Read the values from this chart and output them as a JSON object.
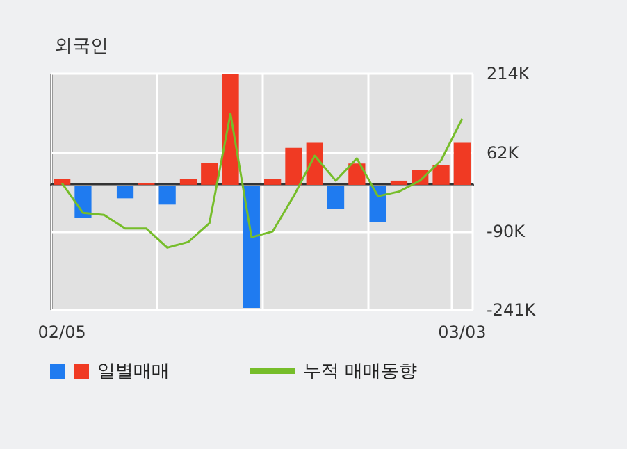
{
  "chart_data": {
    "type": "bar",
    "title": "외국인",
    "categories": [
      "02/05",
      null,
      null,
      null,
      null,
      null,
      null,
      null,
      null,
      null,
      null,
      null,
      null,
      null,
      null,
      null,
      null,
      null,
      null,
      "03/03"
    ],
    "series": [
      {
        "name": "일별매매",
        "values": [
          11,
          -63,
          0,
          -26,
          3,
          -38,
          11,
          42,
          213,
          -237,
          11,
          71,
          81,
          -47,
          41,
          -71,
          8,
          28,
          38,
          81
        ],
        "colors": [
          "#f03a23",
          "#1f7bf0",
          "#f03a23",
          "#1f7bf0",
          "#f03a23",
          "#1f7bf0",
          "#f03a23",
          "#f03a23",
          "#f03a23",
          "#1f7bf0",
          "#f03a23",
          "#f03a23",
          "#f03a23",
          "#1f7bf0",
          "#f03a23",
          "#1f7bf0",
          "#f03a23",
          "#f03a23",
          "#f03a23",
          "#f03a23"
        ]
      },
      {
        "name": "누적 매매동향",
        "type": "line",
        "color": "#76bd2a",
        "values": [
          3,
          -54,
          -58,
          -84,
          -84,
          -121,
          -110,
          -74,
          137,
          -101,
          -90,
          -22,
          56,
          8,
          51,
          -22,
          -13,
          8,
          47,
          127
        ]
      }
    ],
    "ylim": [
      -241,
      214
    ],
    "yticks": [
      {
        "value": 214,
        "label": "214K"
      },
      {
        "value": 62,
        "label": "62K"
      },
      {
        "value": -90,
        "label": "-90K"
      },
      {
        "value": -241,
        "label": "-241K"
      }
    ],
    "ref_lines": [
      {
        "axis": "y",
        "value": 0,
        "label": null,
        "color": "#888888"
      }
    ],
    "grid": true,
    "legend": "bottom",
    "marker": "none",
    "line_style": "solid"
  }
}
